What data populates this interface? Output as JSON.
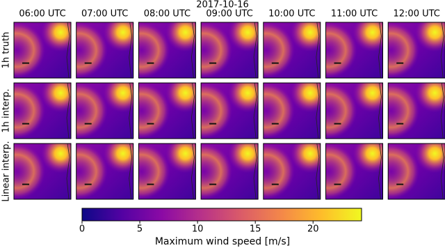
{
  "chart_data": {
    "type": "image-grid",
    "title": "2017-10-16",
    "columns": [
      "06:00 UTC",
      "07:00 UTC",
      "08:00 UTC",
      "09:00 UTC",
      "10:00 UTC",
      "11:00 UTC",
      "12:00 UTC"
    ],
    "rows": [
      "1h truth",
      "1h interp.",
      "Linear interp."
    ],
    "colorbar": {
      "label": "Maximum wind speed [m/s]",
      "lim": [
        0,
        24.2
      ],
      "ticks": [
        0,
        5,
        10,
        15,
        20
      ],
      "colormap": [
        "#0d0887",
        "#5302a3",
        "#8b0aa5",
        "#b83289",
        "#db5c68",
        "#f48849",
        "#febd2a",
        "#f0f921"
      ]
    }
  }
}
